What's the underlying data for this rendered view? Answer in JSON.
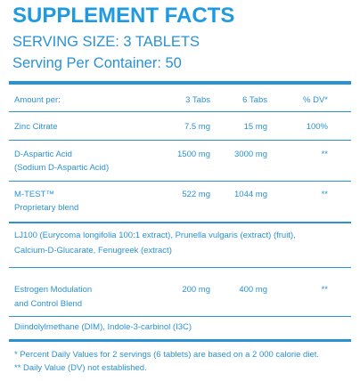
{
  "header": {
    "title": "SUPPLEMENT FACTS",
    "serving_size": "SERVING SIZE: 3 TABLETS",
    "servings_per_container": "Serving Per Container: 50"
  },
  "table": {
    "columns": [
      "Amount per:",
      "3 Tabs",
      "6 Tabs",
      "% DV*"
    ],
    "rows": [
      {
        "name": [
          "Zinc Citrate"
        ],
        "tabs_3": "7.5 mg",
        "tabs_6": "15 mg",
        "dv": "100%"
      },
      {
        "name": [
          "D-Aspartic Acid",
          "(Sodium D-Aspartic Acid)"
        ],
        "tabs_3": "1500 mg",
        "tabs_6": "3000 mg",
        "dv": "**"
      },
      {
        "name": [
          "M-TEST™",
          "Proprietary blend"
        ],
        "tabs_3": "522 mg",
        "tabs_6": "1044 mg",
        "dv": "**"
      },
      {
        "contents": [
          "LJ100 (Eurycoma longifolia 100:1 extract), Prunella vulgaris (extract) (fruit),",
          "Calcium-D-Glucarate, Fenugreek (extract)"
        ]
      },
      {
        "name": [
          "Estrogen Modulation",
          "and Control Blend"
        ],
        "tabs_3": "200 mg",
        "tabs_6": "400 mg",
        "dv": "**"
      },
      {
        "contents": [
          "Diindolylmethane (DIM), Indole-3-carbinol (I3C)"
        ]
      }
    ]
  },
  "footnotes": [
    "* Percent Daily Values for 2 servings (6 tablets) are based  on a 2 000 calorie diet.",
    "** Daily Value (DV) not established."
  ]
}
